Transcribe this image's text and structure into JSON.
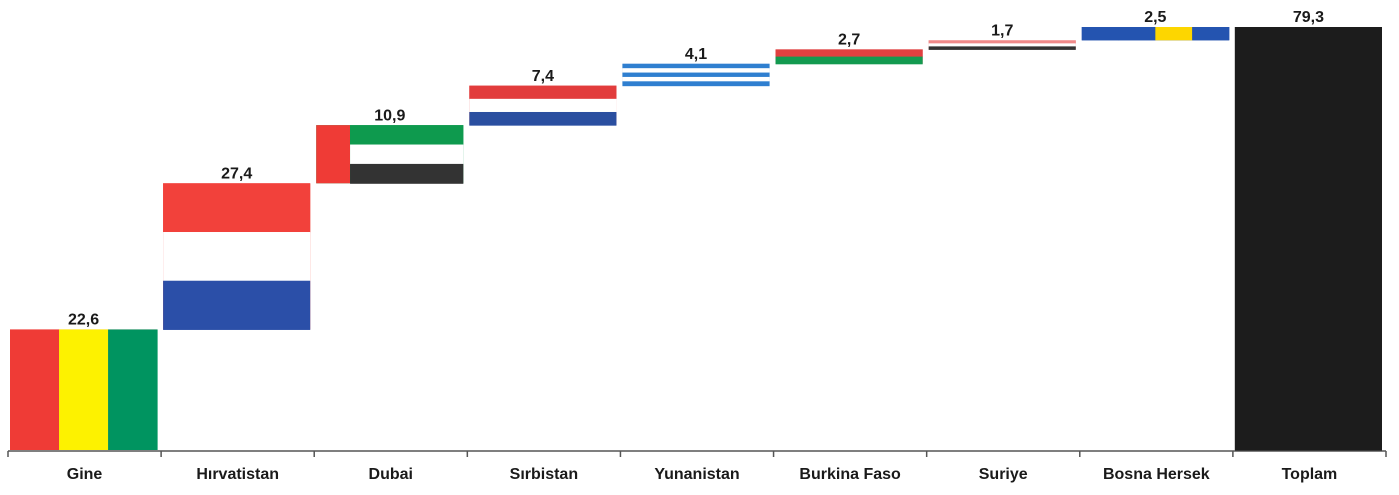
{
  "chart_data": {
    "type": "waterfall",
    "categories": [
      "Gine",
      "Hırvatistan",
      "Dubai",
      "Sırbistan",
      "Yunanistan",
      "Burkina Faso",
      "Suriye",
      "Bosna Hersek",
      "Toplam"
    ],
    "values": [
      22.6,
      27.4,
      10.9,
      7.4,
      4.1,
      2.7,
      1.7,
      2.5,
      79.3
    ],
    "value_labels": [
      "22,6",
      "27,4",
      "10,9",
      "7,4",
      "4,1",
      "2,7",
      "1,7",
      "2,5",
      "79,3"
    ],
    "total_last": true,
    "flags": [
      {
        "dir": "v",
        "colors": [
          "#ef3b36",
          "#fdf200",
          "#009460"
        ]
      },
      {
        "dir": "h",
        "colors": [
          "#f2413b",
          "#ffffff",
          "#2b4fa8"
        ]
      },
      {
        "dir": "h",
        "colors": [
          "#0e9a4e",
          "#ffffff",
          "#333333"
        ],
        "hoist": "#ef3b36"
      },
      {
        "dir": "h",
        "colors": [
          "#e23c3c",
          "#ffffff",
          "#2a4fa0"
        ]
      },
      {
        "dir": "h",
        "colors": [
          "#2f7fd0",
          "#ffffff",
          "#2f7fd0",
          "#ffffff",
          "#2f7fd0"
        ]
      },
      {
        "dir": "h",
        "colors": [
          "#e04040",
          "#139a50"
        ]
      },
      {
        "dir": "h",
        "colors": [
          "#f08a8a",
          "#ffffff",
          "#333333"
        ]
      },
      {
        "dir": "v",
        "colors": [
          "#2454b0",
          "#2454b0",
          "#fdd600",
          "#2454b0"
        ]
      },
      {
        "dir": "h",
        "colors": [
          "#1c1c1c"
        ]
      }
    ]
  }
}
